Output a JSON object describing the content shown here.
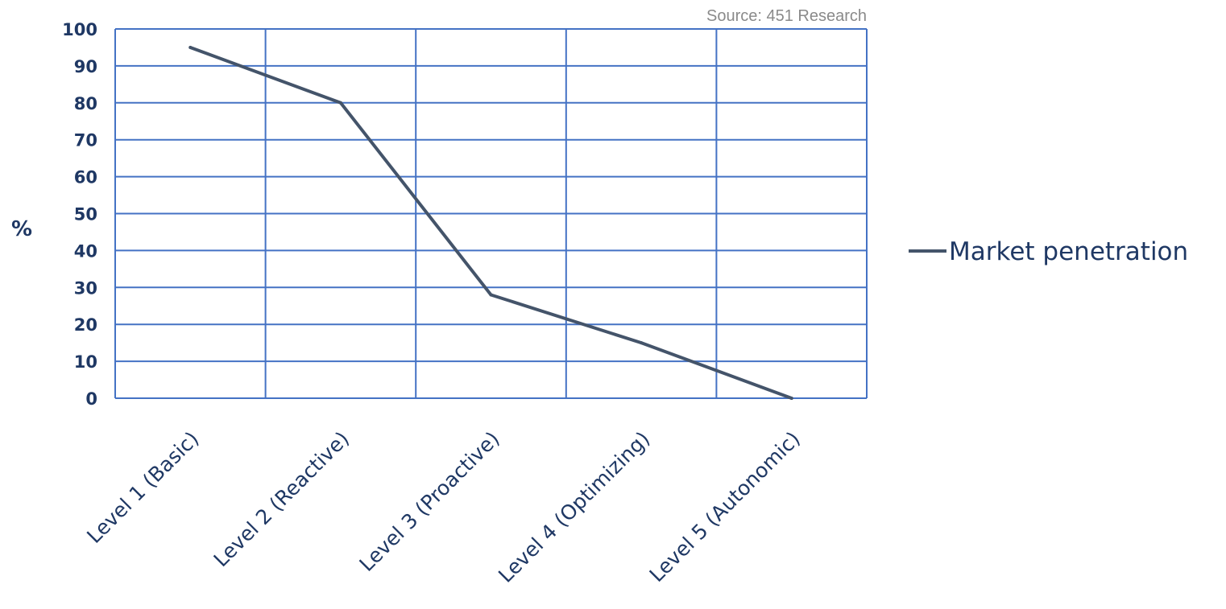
{
  "source_note": "Source: 451 Research",
  "chart_data": {
    "type": "line",
    "categories": [
      "Level 1 (Basic)",
      "Level 2 (Reactive)",
      "Level 3 (Proactive)",
      "Level 4 (Optimizing)",
      "Level 5 (Autonomic)"
    ],
    "series": [
      {
        "name": "Market penetration",
        "values": [
          95,
          80,
          28,
          15,
          0
        ]
      }
    ],
    "y_ticks": [
      "0",
      "10",
      "20",
      "30",
      "40",
      "50",
      "60",
      "70",
      "80",
      "90",
      "100"
    ],
    "ylabel": "%",
    "xlabel": "",
    "ylim": [
      0,
      100
    ],
    "grid": true,
    "legend_position": "right",
    "colors": {
      "line": "#44546a",
      "grid": "#4472c4",
      "text": "#1f3864",
      "source": "#8a8a8a"
    }
  }
}
